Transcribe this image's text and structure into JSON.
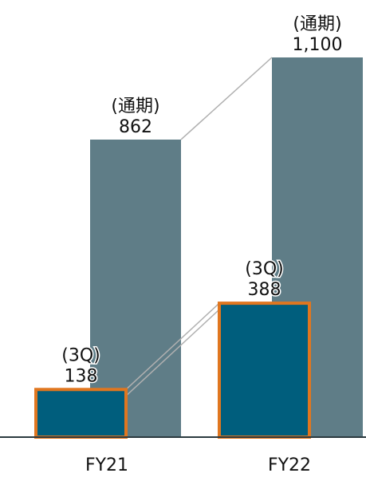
{
  "chart_data": {
    "type": "bar",
    "categories": [
      "FY21",
      "FY22"
    ],
    "series": [
      {
        "values": [
          862,
          1100
        ],
        "label_prefix": "(通期)",
        "value_labels": [
          "862",
          "1,100"
        ],
        "color": "#5f7d87"
      },
      {
        "values": [
          138,
          388
        ],
        "label_prefix": "(3Q)",
        "value_labels": [
          "138",
          "388"
        ],
        "color": "#005e7d",
        "outline": "#e0761f"
      }
    ],
    "connector_color": "#b0b0b0",
    "axis_color": "#2b3a3f",
    "ylim": [
      0,
      1100
    ],
    "legend": "none",
    "grid": false
  }
}
